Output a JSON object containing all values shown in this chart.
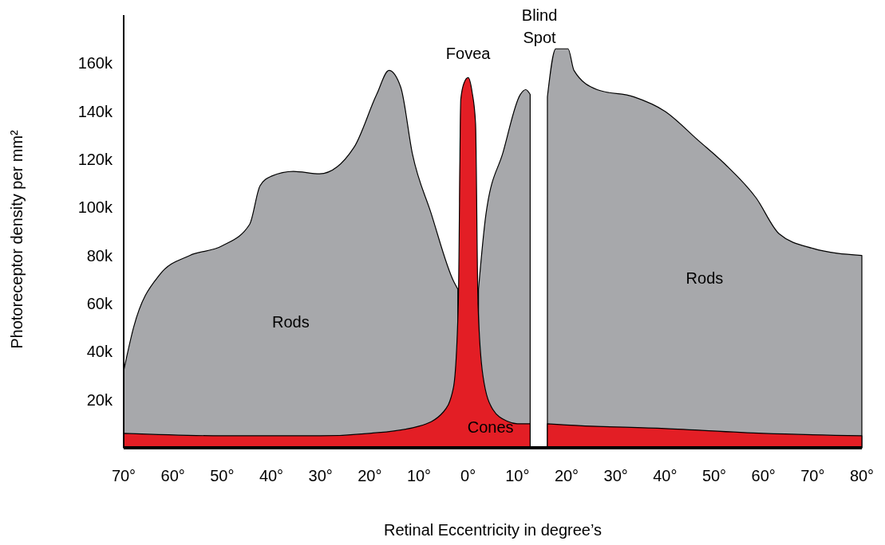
{
  "chart_data": {
    "type": "area",
    "xlabel": "Retinal Eccentricity in degree’s",
    "ylabel": "Photoreceptor density per mm²",
    "xlim": [
      -70,
      80
    ],
    "ylim": [
      0,
      180000
    ],
    "xticks": [
      {
        "value": -70,
        "label": "70°"
      },
      {
        "value": -60,
        "label": "60°"
      },
      {
        "value": -50,
        "label": "50°"
      },
      {
        "value": -40,
        "label": "40°"
      },
      {
        "value": -30,
        "label": "30°"
      },
      {
        "value": -20,
        "label": "20°"
      },
      {
        "value": -10,
        "label": "10°"
      },
      {
        "value": 0,
        "label": "0°"
      },
      {
        "value": 10,
        "label": "10°"
      },
      {
        "value": 20,
        "label": "20°"
      },
      {
        "value": 30,
        "label": "30°"
      },
      {
        "value": 40,
        "label": "40°"
      },
      {
        "value": 50,
        "label": "50°"
      },
      {
        "value": 60,
        "label": "60°"
      },
      {
        "value": 70,
        "label": "70°"
      },
      {
        "value": 80,
        "label": "80°"
      }
    ],
    "yticks": [
      {
        "value": 20000,
        "label": "20k"
      },
      {
        "value": 40000,
        "label": "40k"
      },
      {
        "value": 60000,
        "label": "60k"
      },
      {
        "value": 80000,
        "label": "80k"
      },
      {
        "value": 100000,
        "label": "100k"
      },
      {
        "value": 120000,
        "label": "120k"
      },
      {
        "value": 140000,
        "label": "140k"
      },
      {
        "value": 160000,
        "label": "160k"
      }
    ],
    "grid": false,
    "legend": false,
    "series": [
      {
        "name": "Rods",
        "color": "#a7a8ab",
        "x": [
          -70,
          -68,
          -62.7,
          -56.6,
          -50,
          -44.4,
          -42.3,
          -40,
          -35.5,
          -30.2,
          -23.2,
          -18.6,
          -16.1,
          -13.7,
          -11.3,
          -7.6,
          -2.9,
          -2.1,
          0,
          2.1,
          3.6,
          7.1,
          10.6,
          11.7,
          12.6,
          14.5,
          16.1,
          17.8,
          20.3,
          21.5,
          26.2,
          33.7,
          40,
          46.7,
          52.2,
          58.5,
          63.2,
          70,
          80
        ],
        "values": [
          32000,
          50000,
          72000,
          80000,
          84000,
          93000,
          109000,
          113000,
          115000,
          114000,
          125000,
          147000,
          157000,
          150000,
          122000,
          98000,
          69000,
          66000,
          null,
          66000,
          97000,
          123000,
          147000,
          149000,
          147000,
          null,
          146000,
          166000,
          166000,
          157000,
          149000,
          146000,
          140000,
          128000,
          118000,
          104000,
          89000,
          83000,
          80000
        ]
      },
      {
        "name": "Cones",
        "color": "#e31e25",
        "x": [
          -70,
          -50,
          -30,
          -20,
          -10,
          -5,
          -3,
          -2,
          -1.5,
          -0.8,
          0,
          0.8,
          1.5,
          2,
          3,
          5,
          8,
          10,
          12.6,
          14.5,
          16.1,
          20,
          40,
          60,
          80
        ],
        "values": [
          6000,
          5000,
          5000,
          6000,
          9000,
          15000,
          25000,
          60000,
          145000,
          152000,
          154000,
          148000,
          135000,
          60000,
          30000,
          16000,
          11000,
          10000,
          10000,
          null,
          10000,
          9500,
          8000,
          6000,
          5000
        ]
      }
    ],
    "annotations": [
      "Fovea",
      "Blind Spot"
    ]
  }
}
